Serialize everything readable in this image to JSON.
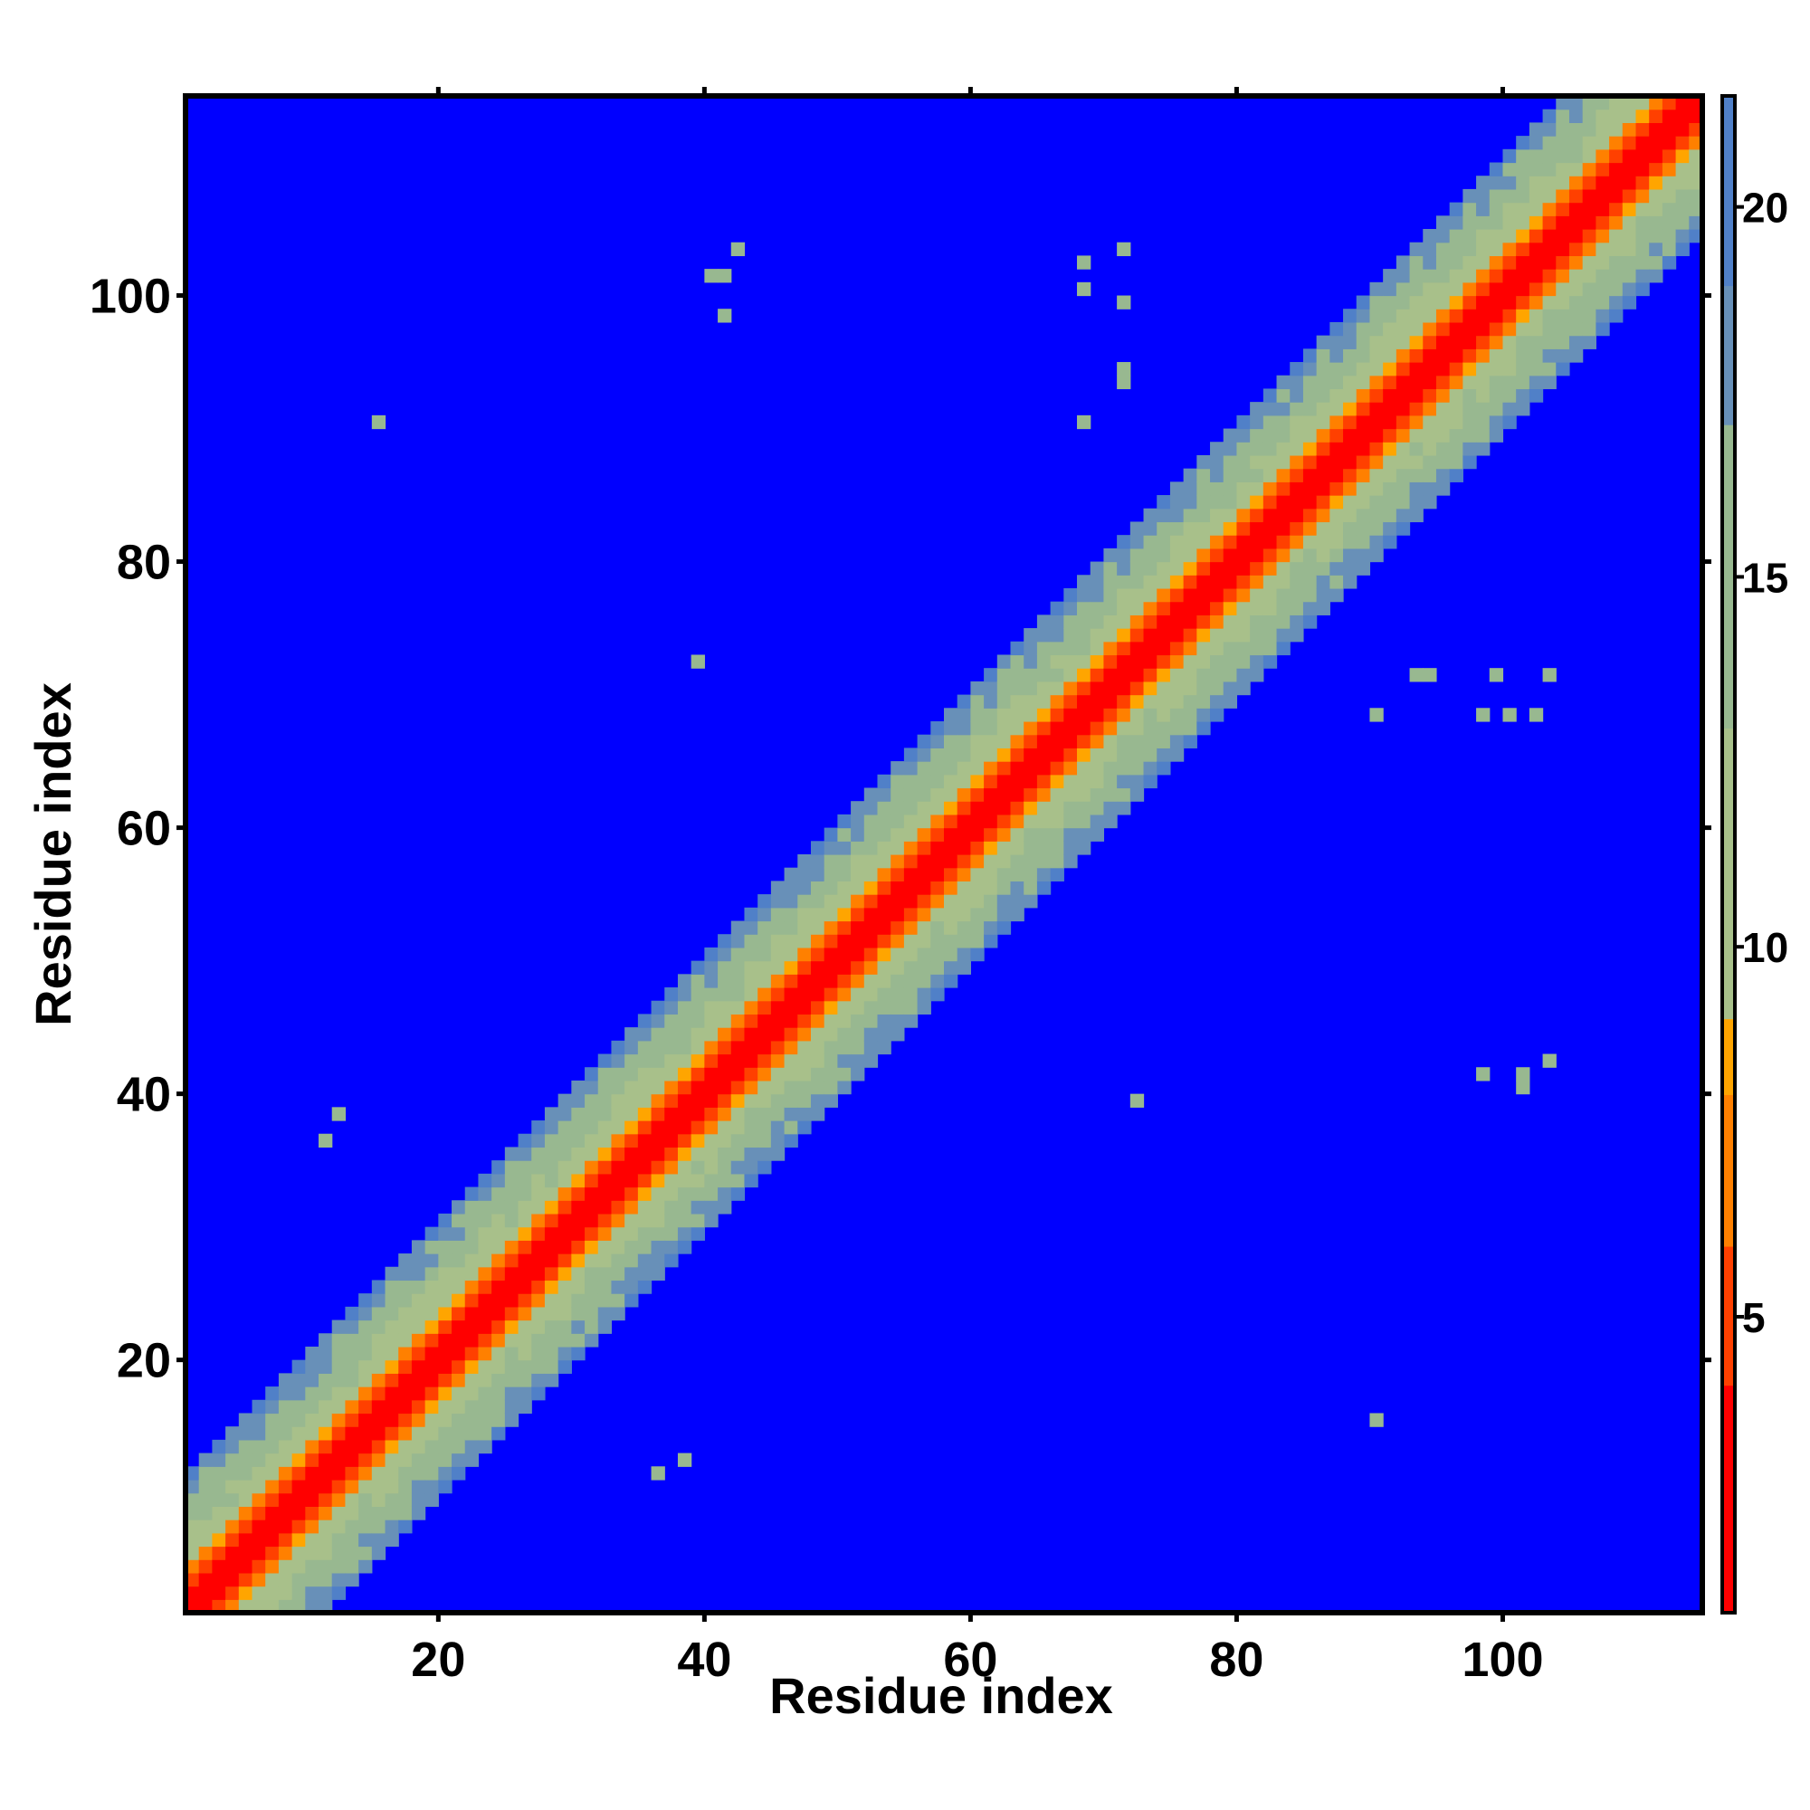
{
  "chart_data": {
    "type": "heatmap",
    "title": "",
    "xlabel": "Residue index",
    "ylabel": "Residue index",
    "xlim": [
      1,
      115
    ],
    "ylim": [
      1,
      115
    ],
    "x_ticks": [
      20,
      40,
      60,
      80,
      100
    ],
    "y_ticks": [
      20,
      40,
      60,
      80,
      100
    ],
    "x_tick_labels": [
      "20",
      "40",
      "60",
      "80",
      "100"
    ],
    "y_tick_labels": [
      "20",
      "40",
      "60",
      "80",
      "100"
    ],
    "n_residues": 114,
    "colorbar": {
      "range": [
        1,
        21.5
      ],
      "ticks": [
        5,
        10,
        15,
        20
      ],
      "tick_labels": [
        "5",
        "10",
        "15",
        "20"
      ],
      "placement": "right",
      "color_stops": [
        {
          "value": 1,
          "color": "#ff0000"
        },
        {
          "value": 4,
          "color": "#ff4000"
        },
        {
          "value": 6,
          "color": "#ff8000"
        },
        {
          "value": 8,
          "color": "#ffa500"
        },
        {
          "value": 9,
          "color": "#a8c08a"
        },
        {
          "value": 13,
          "color": "#98b890"
        },
        {
          "value": 17,
          "color": "#6890b8"
        },
        {
          "value": 19,
          "color": "#5080c8"
        },
        {
          "value": 21.5,
          "color": "#0000ff"
        }
      ]
    },
    "background_color": "#0000ff",
    "description_of_values": "distance matrix; diagonal band of short distances (red/orange) with greenish-blue halo; all other cells at maximum (blue)",
    "isolated_cells": [
      {
        "x": 15,
        "y": 90,
        "value": 15
      },
      {
        "x": 12,
        "y": 38,
        "value": 15
      },
      {
        "x": 11,
        "y": 36,
        "value": 15
      },
      {
        "x": 39,
        "y": 72,
        "value": 15
      },
      {
        "x": 40,
        "y": 101,
        "value": 15
      },
      {
        "x": 41,
        "y": 101,
        "value": 15
      },
      {
        "x": 41,
        "y": 98,
        "value": 15
      },
      {
        "x": 42,
        "y": 103,
        "value": 15
      },
      {
        "x": 68,
        "y": 102,
        "value": 15
      },
      {
        "x": 68,
        "y": 100,
        "value": 15
      },
      {
        "x": 71,
        "y": 103,
        "value": 15
      },
      {
        "x": 71,
        "y": 99,
        "value": 15
      },
      {
        "x": 71,
        "y": 94,
        "value": 15
      },
      {
        "x": 71,
        "y": 93,
        "value": 15
      },
      {
        "x": 68,
        "y": 90,
        "value": 15
      },
      {
        "x": 36,
        "y": 11,
        "value": 15
      },
      {
        "x": 38,
        "y": 12,
        "value": 15
      },
      {
        "x": 72,
        "y": 39,
        "value": 15
      },
      {
        "x": 90,
        "y": 15,
        "value": 15
      },
      {
        "x": 98,
        "y": 41,
        "value": 15
      },
      {
        "x": 101,
        "y": 40,
        "value": 15
      },
      {
        "x": 101,
        "y": 41,
        "value": 15
      },
      {
        "x": 103,
        "y": 42,
        "value": 15
      },
      {
        "x": 90,
        "y": 68,
        "value": 15
      },
      {
        "x": 93,
        "y": 71,
        "value": 15
      },
      {
        "x": 94,
        "y": 71,
        "value": 15
      },
      {
        "x": 98,
        "y": 68,
        "value": 15
      },
      {
        "x": 99,
        "y": 71,
        "value": 15
      },
      {
        "x": 100,
        "y": 68,
        "value": 15
      },
      {
        "x": 102,
        "y": 68,
        "value": 15
      },
      {
        "x": 103,
        "y": 71,
        "value": 15
      }
    ]
  }
}
